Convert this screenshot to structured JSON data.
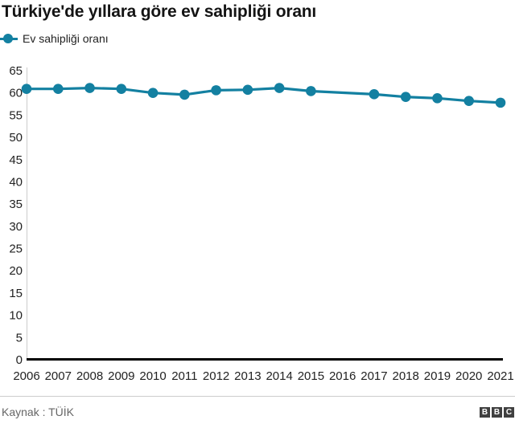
{
  "title": "Türkiye'de yıllara göre ev sahipliği oranı",
  "legend": {
    "label": "Ev sahipliği oranı"
  },
  "footer": {
    "source": "Kaynak : TÜİK",
    "logo_letters": [
      "B",
      "B",
      "C"
    ]
  },
  "colors": {
    "series": "#1380A1",
    "axis": "#000000",
    "grid": "#cccccc",
    "text": "#222222",
    "title": "#141414",
    "source_text": "#666666",
    "logo_bg": "#404040",
    "logo_text": "#ffffff"
  },
  "chart_data": {
    "type": "line",
    "title": "Türkiye'de yıllara göre ev sahipliği oranı",
    "xlabel": "",
    "ylabel": "",
    "categories": [
      "2006",
      "2007",
      "2008",
      "2009",
      "2010",
      "2011",
      "2012",
      "2013",
      "2014",
      "2015",
      "2016",
      "2017",
      "2018",
      "2019",
      "2020",
      "2021"
    ],
    "series": [
      {
        "name": "Ev sahipliği oranı",
        "values": [
          60.9,
          60.9,
          61.1,
          60.9,
          60.0,
          59.6,
          60.6,
          60.7,
          61.1,
          60.4,
          null,
          59.7,
          59.1,
          58.8,
          58.2,
          57.8
        ]
      }
    ],
    "ylim": [
      0,
      65
    ],
    "ytick_step": 5,
    "grid": false,
    "legend_position": "top-left",
    "source": "Kaynak : TÜİK"
  }
}
